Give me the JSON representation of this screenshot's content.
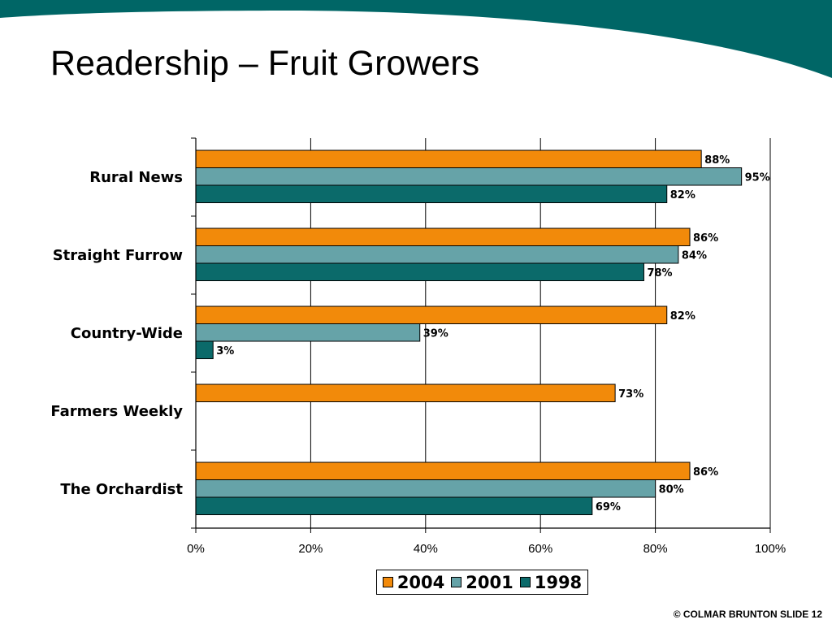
{
  "slide": {
    "title": "Readership – Fruit Growers",
    "footer": "© COLMAR BRUNTON  SLIDE 12",
    "accent_color": "#006666"
  },
  "chart_data": {
    "type": "bar",
    "orientation": "horizontal",
    "categories": [
      "Rural News",
      "Straight Furrow",
      "Country-Wide",
      "Farmers Weekly",
      "The Orchardist"
    ],
    "series": [
      {
        "name": "2004",
        "color": "#F28A0A",
        "values": [
          88,
          86,
          82,
          73,
          86
        ],
        "labels": [
          "88%",
          "86%",
          "82%",
          "73%",
          "86%"
        ]
      },
      {
        "name": "2001",
        "color": "#66A3A8",
        "values": [
          95,
          84,
          39,
          null,
          80
        ],
        "labels": [
          "95%",
          "84%",
          "39%",
          "",
          "80%"
        ]
      },
      {
        "name": "1998",
        "color": "#0B6A6A",
        "values": [
          82,
          78,
          3,
          null,
          69
        ],
        "labels": [
          "82%",
          "78%",
          "3%",
          "",
          "69%"
        ]
      }
    ],
    "x_ticks": [
      "0%",
      "20%",
      "40%",
      "60%",
      "80%",
      "100%"
    ],
    "xlim": [
      0,
      100
    ],
    "grid": true,
    "legend": "bottom"
  }
}
